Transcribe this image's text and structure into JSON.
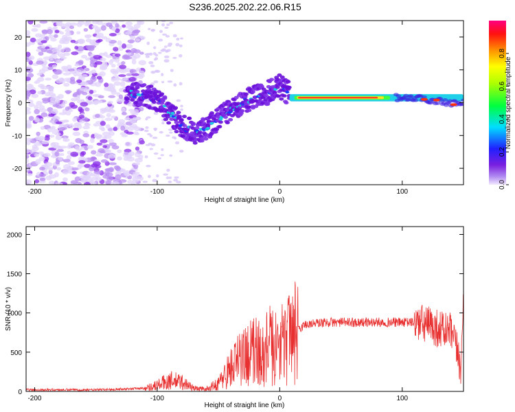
{
  "title": "S236.2025.202.22.06.R15",
  "chart_data": [
    {
      "type": "heatmap",
      "xlabel": "Height of straight line (km)",
      "ylabel": "Frequency (Hz)",
      "xlim": [
        -207,
        150
      ],
      "ylim": [
        -25,
        25
      ],
      "xticks": [
        -200,
        -100,
        0,
        100
      ],
      "yticks": [
        -20,
        -10,
        0,
        10,
        20
      ],
      "ridge": {
        "x": [
          -125,
          -110,
          -100,
          -90,
          -80,
          -70,
          -60,
          -50,
          -40,
          -30,
          -20,
          -10,
          0,
          10,
          20,
          40,
          60,
          80,
          100,
          120,
          140,
          150
        ],
        "y": [
          3,
          2,
          1,
          -3,
          -7,
          -9,
          -8,
          -5,
          -2,
          0,
          2,
          3,
          5,
          2,
          1.5,
          1.5,
          1.5,
          1.5,
          1.5,
          1,
          0,
          0
        ]
      },
      "colorbar": {
        "label": "Normalized spectral amplitude",
        "range": [
          0,
          1
        ],
        "ticks": [
          "0.0",
          "0.2",
          "0.4",
          "0.6",
          "0.8"
        ]
      }
    },
    {
      "type": "line",
      "xlabel": "Height of straight line (km)",
      "ylabel": "SNR (10 * v/v)",
      "xlim": [
        -207,
        150
      ],
      "ylim": [
        0,
        2100
      ],
      "xticks": [
        -200,
        -100,
        0,
        100
      ],
      "yticks": [
        0,
        500,
        1000,
        1500,
        2000
      ],
      "color": "#e83030",
      "envelope": {
        "x": [
          -207,
          -150,
          -110,
          -100,
          -90,
          -80,
          -70,
          -60,
          -50,
          -40,
          -30,
          -20,
          -10,
          0,
          10,
          20,
          30,
          40,
          60,
          80,
          100,
          110,
          120,
          130,
          140,
          145,
          148,
          150
        ],
        "y": [
          20,
          20,
          40,
          80,
          140,
          120,
          40,
          30,
          100,
          300,
          450,
          500,
          550,
          600,
          700,
          850,
          870,
          880,
          880,
          880,
          880,
          880,
          850,
          800,
          750,
          500,
          300,
          1200
        ]
      }
    }
  ]
}
